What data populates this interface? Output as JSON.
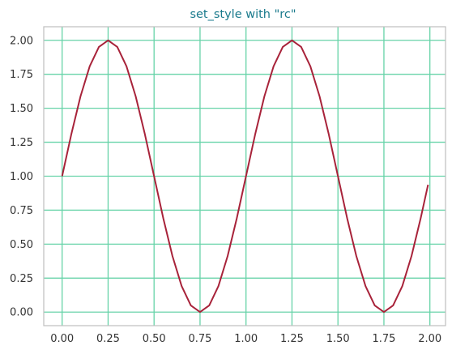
{
  "colors": {
    "title": "#1A7A8C",
    "grid": "#66D3A8",
    "line": "#A8233A",
    "axes_edge": "#BFBFBF",
    "tick_text": "#333333"
  },
  "chart_data": {
    "type": "line",
    "title": "set_style with \"rc\"",
    "xlabel": "",
    "ylabel": "",
    "xlim": [
      -0.1,
      2.085
    ],
    "ylim": [
      -0.1,
      2.1
    ],
    "grid": true,
    "legend": "none",
    "xticks": [
      0,
      0.25,
      0.5,
      0.75,
      1.0,
      1.25,
      1.5,
      1.75,
      2.0
    ],
    "xtick_labels": [
      "0.00",
      "0.25",
      "0.50",
      "0.75",
      "1.00",
      "1.25",
      "1.50",
      "1.75",
      "2.00"
    ],
    "yticks": [
      0,
      0.25,
      0.5,
      0.75,
      1.0,
      1.25,
      1.5,
      1.75,
      2.0
    ],
    "ytick_labels": [
      "0.00",
      "0.25",
      "0.50",
      "0.75",
      "1.00",
      "1.25",
      "1.50",
      "1.75",
      "2.00"
    ],
    "series": [
      {
        "x": [
          0.0,
          0.05,
          0.1,
          0.15,
          0.2,
          0.25,
          0.3,
          0.35,
          0.4,
          0.45,
          0.5,
          0.55,
          0.6,
          0.65,
          0.7,
          0.75,
          0.8,
          0.85,
          0.9,
          0.95,
          1.0,
          1.05,
          1.1,
          1.15,
          1.2,
          1.25,
          1.3,
          1.35,
          1.4,
          1.45,
          1.5,
          1.55,
          1.6,
          1.65,
          1.7,
          1.75,
          1.8,
          1.85,
          1.9,
          1.95,
          1.99
        ],
        "y": [
          1.0,
          1.309,
          1.588,
          1.809,
          1.951,
          2.0,
          1.951,
          1.809,
          1.588,
          1.309,
          1.0,
          0.691,
          0.412,
          0.191,
          0.049,
          0.0,
          0.049,
          0.191,
          0.412,
          0.691,
          1.0,
          1.309,
          1.588,
          1.809,
          1.951,
          2.0,
          1.951,
          1.809,
          1.588,
          1.309,
          1.0,
          0.691,
          0.412,
          0.191,
          0.049,
          0.0,
          0.049,
          0.191,
          0.412,
          0.691,
          0.937
        ]
      }
    ]
  }
}
